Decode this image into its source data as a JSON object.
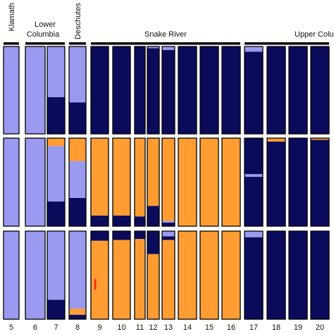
{
  "chart_data": {
    "type": "bar",
    "colors": {
      "A": "#9a9af0",
      "B": "#0b0b5c",
      "C": "#ff9d33",
      "accent": "#ff2020"
    },
    "population_labels": [
      "5",
      "6",
      "7",
      "8",
      "9",
      "10",
      "11",
      "12",
      "13",
      "14",
      "15",
      "16",
      "17",
      "18",
      "19",
      "20"
    ],
    "group_labels": [
      {
        "text": "Klamath",
        "from": 0,
        "to": 0,
        "vertical": true
      },
      {
        "text": "Lower",
        "text2": "Columbia",
        "from": 1,
        "to": 2,
        "vertical": false
      },
      {
        "text": "Deschutes",
        "from": 3,
        "to": 3,
        "vertical": true
      },
      {
        "text": "Snake River",
        "from": 4,
        "to": 11,
        "vertical": false
      },
      {
        "text": "Upper Colu",
        "from": 12,
        "to": 15,
        "vertical": false
      }
    ],
    "rows": [
      {
        "name": "row1",
        "columns": [
          [
            [
              "A",
              1.0
            ]
          ],
          [
            [
              "A",
              1.0
            ]
          ],
          [
            [
              "A",
              0.58
            ],
            [
              "B",
              0.42
            ]
          ],
          [
            [
              "A",
              0.64
            ],
            [
              "B",
              0.36
            ]
          ],
          [
            [
              "B",
              1.0
            ]
          ],
          [
            [
              "B",
              1.0
            ]
          ],
          [
            [
              "B",
              1.0
            ]
          ],
          [
            [
              "A",
              0.02
            ],
            [
              "B",
              0.98
            ]
          ],
          [
            [
              "A",
              0.04
            ],
            [
              "B",
              0.96
            ]
          ],
          [
            [
              "B",
              1.0
            ]
          ],
          [
            [
              "B",
              1.0
            ]
          ],
          [
            [
              "B",
              1.0
            ]
          ],
          [
            [
              "A",
              0.06
            ],
            [
              "B",
              0.94
            ]
          ],
          [
            [
              "B",
              1.0
            ]
          ],
          [
            [
              "B",
              1.0
            ]
          ],
          [
            [
              "B",
              1.0
            ]
          ]
        ]
      },
      {
        "name": "row2",
        "columns": [
          [
            [
              "A",
              1.0
            ]
          ],
          [
            [
              "A",
              1.0
            ]
          ],
          [
            [
              "C",
              0.09
            ],
            [
              "A",
              0.63
            ],
            [
              "B",
              0.28
            ]
          ],
          [
            [
              "C",
              0.26
            ],
            [
              "A",
              0.42
            ],
            [
              "B",
              0.32
            ]
          ],
          [
            [
              "C",
              0.88
            ],
            [
              "B",
              0.12
            ]
          ],
          [
            [
              "C",
              0.88
            ],
            [
              "B",
              0.12
            ]
          ],
          [
            [
              "C",
              0.89
            ],
            [
              "B",
              0.11
            ]
          ],
          [
            [
              "C",
              0.77
            ],
            [
              "B",
              0.23
            ]
          ],
          [
            [
              "C",
              0.94
            ],
            [
              "A",
              0.02
            ],
            [
              "B",
              0.04
            ]
          ],
          [
            [
              "C",
              1.0
            ]
          ],
          [
            [
              "C",
              1.0
            ]
          ],
          [
            [
              "C",
              1.0
            ]
          ],
          [
            [
              "B",
              0.41
            ],
            [
              "A",
              0.03
            ],
            [
              "B",
              0.56
            ]
          ],
          [
            [
              "C",
              0.04
            ],
            [
              "B",
              0.96
            ]
          ],
          [
            [
              "B",
              1.0
            ]
          ],
          [
            [
              "C",
              0.02
            ],
            [
              "B",
              0.98
            ]
          ]
        ]
      },
      {
        "name": "row3",
        "columns": [
          [
            [
              "A",
              1.0
            ]
          ],
          [
            [
              "A",
              1.0
            ]
          ],
          [
            [
              "A",
              0.78
            ],
            [
              "B",
              0.22
            ]
          ],
          [
            [
              "A",
              0.88
            ],
            [
              "C",
              0.07
            ],
            [
              "B",
              0.05
            ]
          ],
          [
            [
              "B",
              0.11
            ],
            [
              "C",
              0.89
            ]
          ],
          [
            [
              "B",
              0.1
            ],
            [
              "C",
              0.9
            ]
          ],
          [
            [
              "B",
              0.09
            ],
            [
              "C",
              0.91
            ]
          ],
          [
            [
              "B",
              0.26
            ],
            [
              "C",
              0.74
            ]
          ],
          [
            [
              "A",
              0.06
            ],
            [
              "B",
              0.04
            ],
            [
              "C",
              0.9
            ]
          ],
          [
            [
              "C",
              1.0
            ]
          ],
          [
            [
              "C",
              1.0
            ]
          ],
          [
            [
              "C",
              1.0
            ]
          ],
          [
            [
              "A",
              0.07
            ],
            [
              "B",
              0.93
            ]
          ],
          [
            [
              "B",
              1.0
            ]
          ],
          [
            [
              "B",
              1.0
            ]
          ],
          [
            [
              "B",
              1.0
            ]
          ]
        ]
      }
    ]
  }
}
